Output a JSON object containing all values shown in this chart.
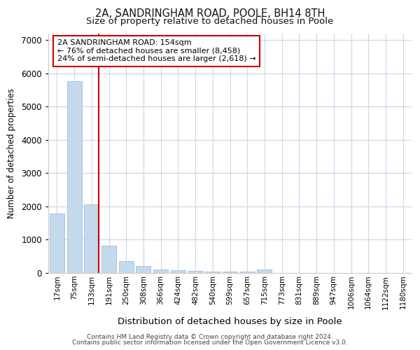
{
  "title_line1": "2A, SANDRINGHAM ROAD, POOLE, BH14 8TH",
  "title_line2": "Size of property relative to detached houses in Poole",
  "xlabel": "Distribution of detached houses by size in Poole",
  "ylabel": "Number of detached properties",
  "categories": [
    "17sqm",
    "75sqm",
    "133sqm",
    "191sqm",
    "250sqm",
    "308sqm",
    "366sqm",
    "424sqm",
    "482sqm",
    "540sqm",
    "599sqm",
    "657sqm",
    "715sqm",
    "773sqm",
    "831sqm",
    "889sqm",
    "947sqm",
    "1006sqm",
    "1064sqm",
    "1122sqm",
    "1180sqm"
  ],
  "values": [
    1780,
    5750,
    2050,
    820,
    365,
    215,
    115,
    80,
    60,
    50,
    45,
    40,
    95,
    0,
    0,
    0,
    0,
    0,
    0,
    0,
    0
  ],
  "bar_color": "#c5d9ec",
  "bar_edge_color": "#a0bee0",
  "property_line_index": 2.42,
  "property_line_color": "#cc0000",
  "annotation_text": "2A SANDRINGHAM ROAD: 154sqm\n← 76% of detached houses are smaller (8,458)\n24% of semi-detached houses are larger (2,618) →",
  "annotation_box_facecolor": "#ffffff",
  "annotation_box_edgecolor": "#cc0000",
  "ylim": [
    0,
    7200
  ],
  "yticks": [
    0,
    1000,
    2000,
    3000,
    4000,
    5000,
    6000,
    7000
  ],
  "grid_color": "#c8d8e8",
  "background_color": "#ffffff",
  "plot_bg_color": "#ffffff",
  "footer_line1": "Contains HM Land Registry data © Crown copyright and database right 2024.",
  "footer_line2": "Contains public sector information licensed under the Open Government Licence v3.0."
}
